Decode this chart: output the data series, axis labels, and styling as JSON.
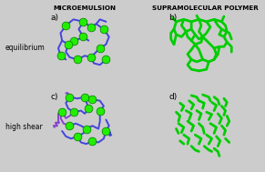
{
  "title_left": "MICROEMULSION",
  "title_right": "SUPRAMOLECULAR POLYMER",
  "label_a": "a)",
  "label_b": "b)",
  "label_c": "c)",
  "label_d": "d)",
  "label_eq": "equilibrium",
  "label_hs": "high shear",
  "blue_color": "#4444dd",
  "purple_color": "#8844cc",
  "green_color": "#00cc00",
  "ball_color": "#22ee00",
  "fig_bg": "#cccccc",
  "lw_chain": 1.4,
  "lw_poly": 2.0,
  "ball_size": 40
}
